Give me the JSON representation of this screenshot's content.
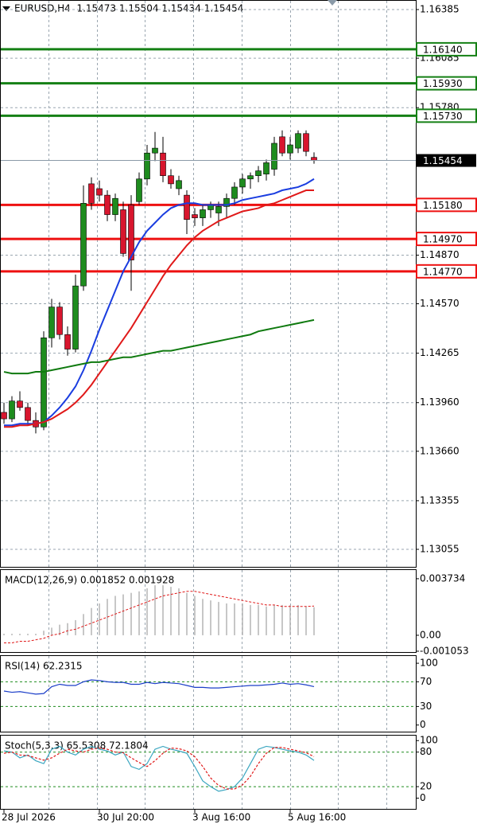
{
  "chart_data": [
    {
      "type": "candlestick",
      "title": "EURUSD,H4  1.15473 1.15504 1.15434 1.15454",
      "categories": [
        "28 Jul 2026",
        null,
        null,
        null,
        null,
        null,
        null,
        null,
        null,
        null,
        null,
        null,
        "30 Jul 20:00",
        null,
        null,
        null,
        null,
        null,
        null,
        null,
        null,
        null,
        null,
        null,
        "3 Aug 16:00",
        null,
        null,
        null,
        null,
        null,
        null,
        null,
        null,
        null,
        null,
        null,
        "5 Aug 16:00",
        null,
        null,
        null
      ],
      "open": [
        1.139,
        1.1386,
        1.1397,
        1.1393,
        1.1385,
        1.1381,
        1.1436,
        1.1455,
        1.1438,
        1.1429,
        1.1468,
        1.1531,
        1.1528,
        1.1524,
        1.1512,
        1.1515,
        1.1518,
        1.152,
        1.1534,
        1.155,
        1.155,
        1.1536,
        1.1528,
        1.1524,
        1.1512,
        1.151,
        1.1515,
        1.1513,
        1.1517,
        1.1522,
        1.1529,
        1.1534,
        1.1536,
        1.1537,
        1.154,
        1.156,
        1.155,
        1.1553,
        1.1562,
        1.15473
      ],
      "high": [
        1.1396,
        1.14,
        1.1403,
        1.1396,
        1.139,
        1.144,
        1.146,
        1.1458,
        1.1443,
        1.1475,
        1.153,
        1.1535,
        1.1533,
        1.1527,
        1.1525,
        1.152,
        1.1524,
        1.1538,
        1.1555,
        1.1563,
        1.156,
        1.154,
        1.1536,
        1.1527,
        1.1516,
        1.1518,
        1.152,
        1.152,
        1.1525,
        1.1532,
        1.1537,
        1.1538,
        1.1542,
        1.1546,
        1.156,
        1.1564,
        1.156,
        1.1564,
        1.1564,
        1.15504
      ],
      "low": [
        1.1383,
        1.1384,
        1.1391,
        1.1382,
        1.1377,
        1.1379,
        1.143,
        1.1435,
        1.1425,
        1.1427,
        1.1465,
        1.1515,
        1.152,
        1.1508,
        1.1508,
        1.1486,
        1.1465,
        1.1518,
        1.153,
        1.1545,
        1.1532,
        1.1528,
        1.1524,
        1.15,
        1.1505,
        1.1505,
        1.151,
        1.1505,
        1.151,
        1.1518,
        1.1525,
        1.1528,
        1.1532,
        1.1533,
        1.1536,
        1.1548,
        1.1546,
        1.155,
        1.1548,
        1.15434
      ],
      "close": [
        1.1386,
        1.1397,
        1.1393,
        1.1385,
        1.1381,
        1.1436,
        1.1455,
        1.1438,
        1.1429,
        1.1468,
        1.1519,
        1.1519,
        1.1524,
        1.1512,
        1.1522,
        1.1488,
        1.1484,
        1.1534,
        1.155,
        1.1553,
        1.1536,
        1.1531,
        1.1533,
        1.1509,
        1.151,
        1.1515,
        1.1518,
        1.1517,
        1.1522,
        1.1529,
        1.1534,
        1.1536,
        1.1539,
        1.1544,
        1.1556,
        1.155,
        1.1555,
        1.1562,
        1.1551,
        1.15454
      ],
      "up_color": "#1e8c1e",
      "down_color": "#d8162e",
      "series": [
        {
          "color": "#1a3de0",
          "values": [
            1.1382,
            1.1382,
            1.1383,
            1.1383,
            1.1383,
            1.1384,
            1.1388,
            1.1393,
            1.1399,
            1.1406,
            1.1416,
            1.1428,
            1.1441,
            1.1453,
            1.1465,
            1.1477,
            1.1486,
            1.1495,
            1.1502,
            1.1507,
            1.1512,
            1.1516,
            1.1518,
            1.1519,
            1.1519,
            1.1518,
            1.1518,
            1.1518,
            1.1518,
            1.1519,
            1.1521,
            1.1522,
            1.1523,
            1.1524,
            1.1525,
            1.1527,
            1.1528,
            1.1529,
            1.1531,
            1.1534
          ]
        },
        {
          "color": "#e01919",
          "values": [
            1.1381,
            1.1381,
            1.1382,
            1.1382,
            1.1383,
            1.1384,
            1.1386,
            1.1389,
            1.1392,
            1.1396,
            1.1401,
            1.1407,
            1.1414,
            1.1421,
            1.1428,
            1.1435,
            1.1442,
            1.145,
            1.1458,
            1.1466,
            1.1474,
            1.1481,
            1.1487,
            1.1493,
            1.1498,
            1.1502,
            1.1505,
            1.1508,
            1.151,
            1.1512,
            1.1514,
            1.1515,
            1.1516,
            1.1518,
            1.1519,
            1.1521,
            1.1523,
            1.1525,
            1.1527,
            1.1527
          ]
        },
        {
          "color": "#0f7a0f",
          "values": [
            1.1415,
            1.1414,
            1.1414,
            1.1414,
            1.1415,
            1.1415,
            1.1416,
            1.1417,
            1.1418,
            1.1419,
            1.142,
            1.1421,
            1.1421,
            1.1422,
            1.1423,
            1.1424,
            1.1424,
            1.1425,
            1.1426,
            1.1427,
            1.1428,
            1.1428,
            1.1429,
            1.143,
            1.1431,
            1.1432,
            1.1433,
            1.1434,
            1.1435,
            1.1436,
            1.1437,
            1.1438,
            1.144,
            1.1441,
            1.1442,
            1.1443,
            1.1444,
            1.1445,
            1.1446,
            1.1447
          ]
        }
      ],
      "levels": [
        {
          "value": 1.1614,
          "label": "1.16140",
          "color": "#158015"
        },
        {
          "value": 1.1593,
          "label": "1.15930",
          "color": "#158015"
        },
        {
          "value": 1.1573,
          "label": "1.15730",
          "color": "#158015"
        },
        {
          "value": 1.1518,
          "label": "1.15180",
          "color": "#ee1111"
        },
        {
          "value": 1.1497,
          "label": "1.14970",
          "color": "#ee1111"
        },
        {
          "value": 1.1477,
          "label": "1.14770",
          "color": "#ee1111"
        }
      ],
      "current_price": 1.15454,
      "ylim": [
        1.12942,
        1.16444
      ],
      "yticks": [
        1.16385,
        1.16085,
        {
          "value": 1.1578,
          "label": "1.15780"
        },
        {
          "value": 1.1487,
          "label": "1.14870"
        },
        {
          "value": 1.1457,
          "label": "1.14570"
        },
        1.14265,
        {
          "value": 1.1396,
          "label": "1.13960"
        },
        {
          "value": 1.1366,
          "label": "1.13660"
        },
        1.13355,
        1.13055
      ],
      "grid": true
    },
    {
      "type": "macd",
      "label": "MACD(12,26,9) 0.001852 0.001928",
      "values": [
        0.0001,
        0.0001,
        0.0001,
        0.0001,
        0.0001,
        0.0003,
        0.0005,
        0.0007,
        0.0008,
        0.001,
        0.0014,
        0.0018,
        0.0021,
        0.0024,
        0.0026,
        0.0027,
        0.0028,
        0.0029,
        0.0031,
        0.0033,
        0.0033,
        0.0032,
        0.0031,
        0.0028,
        0.0026,
        0.0024,
        0.0023,
        0.0022,
        0.0021,
        0.0021,
        0.0021,
        0.002,
        0.002,
        0.0019,
        0.002,
        0.002,
        0.002,
        0.002,
        0.0019,
        0.001852
      ],
      "color": "#b4b4b4",
      "signal": [
        -0.0005,
        -0.0005,
        -0.0004,
        -0.0004,
        -0.0003,
        -0.0002,
        0.0,
        0.0001,
        0.0003,
        0.0004,
        0.0006,
        0.0008,
        0.001,
        0.0012,
        0.0014,
        0.0016,
        0.0018,
        0.002,
        0.0022,
        0.0024,
        0.0026,
        0.0027,
        0.0028,
        0.0029,
        0.0029,
        0.0028,
        0.0027,
        0.0026,
        0.0025,
        0.0024,
        0.0023,
        0.0022,
        0.0021,
        0.002,
        0.002,
        0.0019,
        0.0019,
        0.0019,
        0.0019,
        0.001928
      ],
      "signal_color": "#e01919",
      "ylim": [
        -0.00116,
        0.00436
      ],
      "yticks": [
        0.003734,
        {
          "value": 0,
          "label": "0.00"
        },
        -0.001053
      ]
    },
    {
      "type": "line",
      "label": "RSI(14) 62.2315",
      "series": [
        {
          "color": "#1b3ec8",
          "values": [
            55,
            53,
            54,
            52,
            50,
            51,
            62,
            66,
            64,
            64,
            70,
            73,
            72,
            70,
            69,
            69,
            66,
            66,
            69,
            67,
            69,
            68,
            67,
            64,
            61,
            61,
            60,
            60,
            61,
            62,
            63,
            64,
            64,
            65,
            66,
            68,
            66,
            67,
            65,
            62.2315
          ]
        }
      ],
      "ylim": [
        -12,
        113
      ],
      "yticks": [
        100,
        70,
        30,
        0
      ],
      "grid": "inner"
    },
    {
      "type": "line",
      "label": "Stoch(5,3,3) 65.5308 72.1804",
      "series": [
        {
          "color": "#3aa6c0",
          "values": [
            82,
            80,
            70,
            75,
            65,
            60,
            85,
            90,
            80,
            75,
            85,
            90,
            85,
            82,
            75,
            80,
            55,
            50,
            60,
            85,
            90,
            85,
            82,
            78,
            55,
            30,
            20,
            12,
            15,
            20,
            35,
            60,
            85,
            90,
            88,
            85,
            82,
            80,
            75,
            65.5308
          ]
        },
        {
          "color": "#e01919",
          "dashed": true,
          "values": [
            78,
            80,
            75,
            74,
            70,
            66,
            70,
            78,
            85,
            82,
            80,
            85,
            87,
            85,
            80,
            79,
            70,
            62,
            55,
            65,
            78,
            87,
            86,
            82,
            72,
            55,
            35,
            22,
            16,
            16,
            23,
            38,
            60,
            78,
            88,
            88,
            85,
            82,
            79,
            72.1804
          ]
        }
      ],
      "ylim": [
        -20,
        110
      ],
      "yticks": [
        100,
        80,
        20,
        0
      ],
      "grid": "inner"
    }
  ]
}
